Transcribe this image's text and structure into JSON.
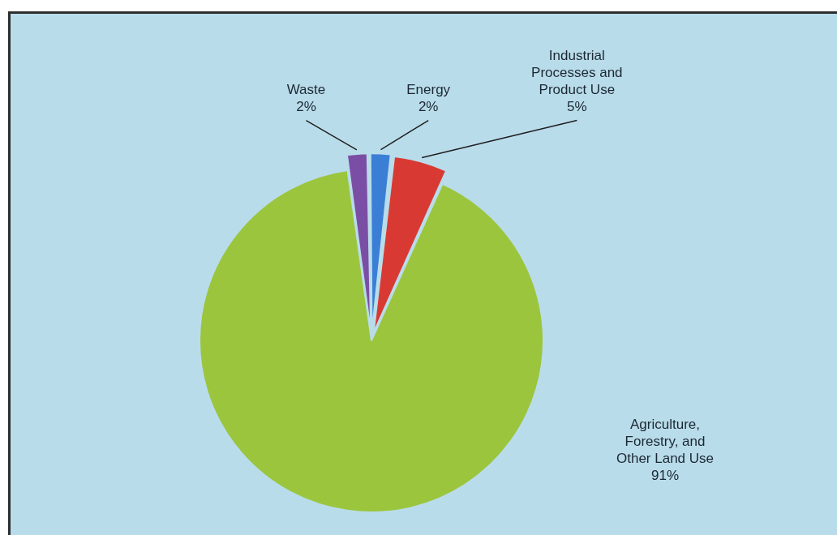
{
  "chart_data": {
    "type": "pie",
    "categories": [
      "Waste",
      "Energy",
      "Industrial Processes and Product Use",
      "Agriculture, Forestry, and Other Land Use"
    ],
    "values": [
      2,
      2,
      5,
      91
    ],
    "colors": [
      "#7b4ea5",
      "#3a7fd5",
      "#d83a33",
      "#9bc53d"
    ],
    "value_labels": [
      "2%",
      "2%",
      "5%",
      "91%"
    ]
  }
}
